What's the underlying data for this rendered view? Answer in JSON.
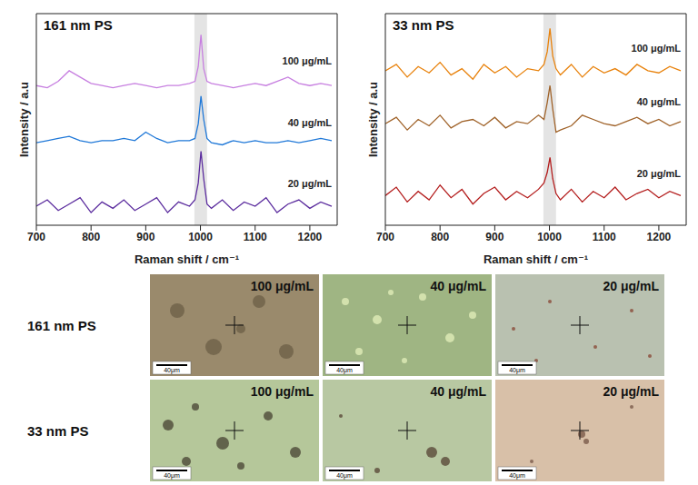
{
  "chart_data": [
    {
      "type": "line",
      "title": "161 nm PS",
      "x_label": "Raman shift / cm⁻¹",
      "y_label": "Intensity / a.u",
      "x": [
        700,
        720,
        740,
        760,
        780,
        800,
        820,
        840,
        860,
        880,
        900,
        920,
        940,
        960,
        980,
        990,
        996,
        1001,
        1006,
        1012,
        1020,
        1040,
        1060,
        1080,
        1100,
        1120,
        1140,
        1160,
        1180,
        1200,
        1220,
        1240
      ],
      "series": [
        {
          "name": "100 μg/mL",
          "color": "#c77fe0",
          "values": [
            66,
            65,
            68,
            73,
            70,
            67,
            66,
            65,
            66,
            67,
            66,
            65,
            66,
            66,
            67,
            68,
            75,
            90,
            74,
            68,
            67,
            66,
            65,
            66,
            67,
            66,
            68,
            70,
            67,
            66,
            67,
            66
          ]
        },
        {
          "name": "40 μg/mL",
          "color": "#1f78d8",
          "values": [
            39,
            40,
            41,
            42,
            40,
            39,
            40,
            40,
            41,
            40,
            44,
            41,
            39,
            40,
            40,
            41,
            48,
            61,
            50,
            41,
            39,
            38,
            40,
            39,
            40,
            39,
            39,
            40,
            39,
            40,
            41,
            40
          ]
        },
        {
          "name": "20 μg/mL",
          "color": "#5b2c9e",
          "values": [
            9,
            12,
            7,
            10,
            13,
            6,
            11,
            8,
            12,
            7,
            10,
            13,
            6,
            11,
            9,
            12,
            20,
            35,
            22,
            10,
            8,
            12,
            7,
            11,
            9,
            13,
            6,
            10,
            12,
            8,
            11,
            9
          ]
        }
      ],
      "xlim": [
        700,
        1250
      ],
      "xticks": [
        700,
        800,
        900,
        1000,
        1100,
        1200
      ],
      "ylim": [
        0,
        100
      ],
      "tick_labels": "x",
      "grid": false,
      "band": [
        989,
        1012
      ]
    },
    {
      "type": "line",
      "title": "33 nm PS",
      "x_label": "Raman shift / cm⁻¹",
      "y_label": "Intensity / a.u",
      "x": [
        700,
        720,
        740,
        760,
        780,
        800,
        820,
        840,
        860,
        880,
        900,
        920,
        940,
        960,
        980,
        990,
        996,
        1001,
        1006,
        1012,
        1020,
        1040,
        1060,
        1080,
        1100,
        1120,
        1140,
        1160,
        1180,
        1200,
        1220,
        1240
      ],
      "series": [
        {
          "name": "100 μg/mL",
          "color": "#e8820c",
          "values": [
            73,
            76,
            70,
            75,
            72,
            77,
            71,
            74,
            69,
            76,
            72,
            75,
            70,
            74,
            73,
            76,
            82,
            93,
            80,
            74,
            71,
            76,
            70,
            75,
            72,
            74,
            71,
            76,
            73,
            72,
            75,
            73
          ]
        },
        {
          "name": "40 μg/mL",
          "color": "#a0632a",
          "values": [
            48,
            51,
            45,
            50,
            47,
            52,
            46,
            49,
            50,
            47,
            51,
            46,
            49,
            48,
            52,
            50,
            58,
            66,
            55,
            44,
            45,
            47,
            52,
            50,
            48,
            47,
            49,
            51,
            48,
            50,
            47,
            49
          ]
        },
        {
          "name": "20 μg/mL",
          "color": "#b41e1e",
          "values": [
            14,
            18,
            11,
            16,
            12,
            19,
            13,
            17,
            10,
            15,
            18,
            12,
            16,
            13,
            17,
            20,
            25,
            32,
            22,
            15,
            12,
            17,
            11,
            16,
            13,
            18,
            12,
            15,
            17,
            13,
            16,
            14
          ]
        }
      ],
      "xlim": [
        700,
        1250
      ],
      "xticks": [
        700,
        800,
        900,
        1000,
        1100,
        1200
      ],
      "ylim": [
        0,
        100
      ],
      "tick_labels": "x",
      "grid": false,
      "band": [
        989,
        1012
      ]
    }
  ],
  "micrographs": {
    "scale_bar": "40μm",
    "rows": [
      {
        "label": "161 nm PS",
        "panels": [
          "100 μg/mL",
          "40 μg/mL",
          "20 μg/mL"
        ]
      },
      {
        "label": "33 nm PS",
        "panels": [
          "100 μg/mL",
          "40 μg/mL",
          "20 μg/mL"
        ]
      }
    ]
  }
}
